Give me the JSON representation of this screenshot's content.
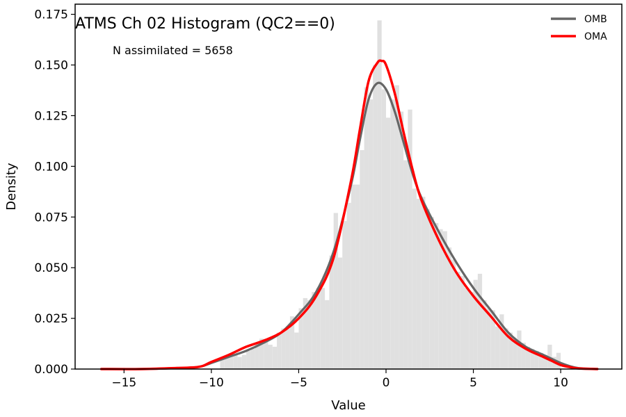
{
  "chart_data": {
    "type": "bar",
    "title": "ATMS Ch 02 Histogram (QC2==0)",
    "annotation": "N assimilated = 5658",
    "xlabel": "Value",
    "ylabel": "Density",
    "xlim": [
      -17.8,
      13.5
    ],
    "ylim": [
      0,
      0.18
    ],
    "xticks": [
      -15,
      -10,
      -5,
      0,
      5,
      10
    ],
    "xtick_labels": [
      "−15",
      "−10",
      "−5",
      "0",
      "5",
      "10"
    ],
    "yticks": [
      0.0,
      0.025,
      0.05,
      0.075,
      0.1,
      0.125,
      0.15,
      0.175
    ],
    "ytick_labels": [
      "0.000",
      "0.025",
      "0.050",
      "0.075",
      "0.100",
      "0.125",
      "0.150",
      "0.175"
    ],
    "grid": false,
    "legend_placement": "top-right",
    "histogram": {
      "color": "#e0e0e0",
      "bins": [
        {
          "x0": -9.5,
          "x1": -9.25,
          "y": 0.006
        },
        {
          "x0": -9.25,
          "x1": -9.0,
          "y": 0.006
        },
        {
          "x0": -9.0,
          "x1": -8.75,
          "y": 0.007
        },
        {
          "x0": -8.75,
          "x1": -8.5,
          "y": 0.007
        },
        {
          "x0": -8.5,
          "x1": -8.25,
          "y": 0.006
        },
        {
          "x0": -8.25,
          "x1": -8.0,
          "y": 0.007
        },
        {
          "x0": -8.0,
          "x1": -7.75,
          "y": 0.009
        },
        {
          "x0": -7.75,
          "x1": -7.5,
          "y": 0.01
        },
        {
          "x0": -7.5,
          "x1": -7.25,
          "y": 0.013
        },
        {
          "x0": -7.25,
          "x1": -7.0,
          "y": 0.015
        },
        {
          "x0": -7.0,
          "x1": -6.75,
          "y": 0.014
        },
        {
          "x0": -6.75,
          "x1": -6.5,
          "y": 0.012
        },
        {
          "x0": -6.5,
          "x1": -6.25,
          "y": 0.011
        },
        {
          "x0": -6.25,
          "x1": -6.0,
          "y": 0.018
        },
        {
          "x0": -6.0,
          "x1": -5.75,
          "y": 0.02
        },
        {
          "x0": -5.75,
          "x1": -5.5,
          "y": 0.02
        },
        {
          "x0": -5.5,
          "x1": -5.25,
          "y": 0.026
        },
        {
          "x0": -5.25,
          "x1": -5.0,
          "y": 0.018
        },
        {
          "x0": -5.0,
          "x1": -4.75,
          "y": 0.03
        },
        {
          "x0": -4.75,
          "x1": -4.5,
          "y": 0.035
        },
        {
          "x0": -4.5,
          "x1": -4.25,
          "y": 0.034
        },
        {
          "x0": -4.25,
          "x1": -4.0,
          "y": 0.038
        },
        {
          "x0": -4.0,
          "x1": -3.75,
          "y": 0.04
        },
        {
          "x0": -3.75,
          "x1": -3.5,
          "y": 0.04
        },
        {
          "x0": -3.5,
          "x1": -3.25,
          "y": 0.034
        },
        {
          "x0": -3.25,
          "x1": -3.0,
          "y": 0.056
        },
        {
          "x0": -3.0,
          "x1": -2.75,
          "y": 0.077
        },
        {
          "x0": -2.75,
          "x1": -2.5,
          "y": 0.055
        },
        {
          "x0": -2.5,
          "x1": -2.25,
          "y": 0.073
        },
        {
          "x0": -2.25,
          "x1": -2.0,
          "y": 0.082
        },
        {
          "x0": -2.0,
          "x1": -1.75,
          "y": 0.091
        },
        {
          "x0": -1.75,
          "x1": -1.5,
          "y": 0.091
        },
        {
          "x0": -1.5,
          "x1": -1.25,
          "y": 0.108
        },
        {
          "x0": -1.25,
          "x1": -1.0,
          "y": 0.139
        },
        {
          "x0": -1.0,
          "x1": -0.75,
          "y": 0.133
        },
        {
          "x0": -0.75,
          "x1": -0.5,
          "y": 0.15
        },
        {
          "x0": -0.5,
          "x1": -0.25,
          "y": 0.172
        },
        {
          "x0": -0.25,
          "x1": 0.0,
          "y": 0.138
        },
        {
          "x0": 0.0,
          "x1": 0.25,
          "y": 0.124
        },
        {
          "x0": 0.25,
          "x1": 0.5,
          "y": 0.133
        },
        {
          "x0": 0.5,
          "x1": 0.75,
          "y": 0.14
        },
        {
          "x0": 0.75,
          "x1": 1.0,
          "y": 0.127
        },
        {
          "x0": 1.0,
          "x1": 1.25,
          "y": 0.103
        },
        {
          "x0": 1.25,
          "x1": 1.5,
          "y": 0.128
        },
        {
          "x0": 1.5,
          "x1": 1.75,
          "y": 0.089
        },
        {
          "x0": 1.75,
          "x1": 2.0,
          "y": 0.084
        },
        {
          "x0": 2.0,
          "x1": 2.25,
          "y": 0.085
        },
        {
          "x0": 2.25,
          "x1": 2.5,
          "y": 0.079
        },
        {
          "x0": 2.5,
          "x1": 2.75,
          "y": 0.075
        },
        {
          "x0": 2.75,
          "x1": 3.0,
          "y": 0.072
        },
        {
          "x0": 3.0,
          "x1": 3.25,
          "y": 0.069
        },
        {
          "x0": 3.25,
          "x1": 3.5,
          "y": 0.068
        },
        {
          "x0": 3.5,
          "x1": 3.75,
          "y": 0.06
        },
        {
          "x0": 3.75,
          "x1": 4.0,
          "y": 0.054
        },
        {
          "x0": 4.0,
          "x1": 4.25,
          "y": 0.048
        },
        {
          "x0": 4.25,
          "x1": 4.5,
          "y": 0.046
        },
        {
          "x0": 4.5,
          "x1": 4.75,
          "y": 0.04
        },
        {
          "x0": 4.75,
          "x1": 5.0,
          "y": 0.038
        },
        {
          "x0": 5.0,
          "x1": 5.25,
          "y": 0.044
        },
        {
          "x0": 5.25,
          "x1": 5.5,
          "y": 0.047
        },
        {
          "x0": 5.5,
          "x1": 5.75,
          "y": 0.034
        },
        {
          "x0": 5.75,
          "x1": 6.0,
          "y": 0.03
        },
        {
          "x0": 6.0,
          "x1": 6.25,
          "y": 0.029
        },
        {
          "x0": 6.25,
          "x1": 6.5,
          "y": 0.021
        },
        {
          "x0": 6.5,
          "x1": 6.75,
          "y": 0.027
        },
        {
          "x0": 6.75,
          "x1": 7.0,
          "y": 0.02
        },
        {
          "x0": 7.0,
          "x1": 7.25,
          "y": 0.018
        },
        {
          "x0": 7.25,
          "x1": 7.5,
          "y": 0.014
        },
        {
          "x0": 7.5,
          "x1": 7.75,
          "y": 0.019
        },
        {
          "x0": 7.75,
          "x1": 8.0,
          "y": 0.013
        },
        {
          "x0": 8.0,
          "x1": 8.25,
          "y": 0.011
        },
        {
          "x0": 8.25,
          "x1": 8.5,
          "y": 0.01
        },
        {
          "x0": 8.5,
          "x1": 8.75,
          "y": 0.009
        },
        {
          "x0": 8.75,
          "x1": 9.0,
          "y": 0.008
        },
        {
          "x0": 9.0,
          "x1": 9.25,
          "y": 0.007
        },
        {
          "x0": 9.25,
          "x1": 9.5,
          "y": 0.012
        },
        {
          "x0": 9.5,
          "x1": 9.75,
          "y": 0.006
        },
        {
          "x0": 9.75,
          "x1": 10.0,
          "y": 0.008
        }
      ]
    },
    "series": [
      {
        "name": "OMB",
        "color": "#666666",
        "x": [
          -16.3,
          -14,
          -12,
          -11,
          -10.5,
          -10,
          -9,
          -8,
          -7,
          -6,
          -5,
          -4,
          -3,
          -2,
          -1.5,
          -1,
          -0.5,
          0,
          0.5,
          1,
          1.5,
          2,
          3,
          4,
          5,
          6,
          7,
          8,
          9,
          9.5,
          10,
          10.5,
          11,
          12.1
        ],
        "y": [
          0.0,
          0.0,
          0.0005,
          0.0008,
          0.0015,
          0.003,
          0.006,
          0.009,
          0.013,
          0.018,
          0.027,
          0.038,
          0.058,
          0.091,
          0.113,
          0.133,
          0.141,
          0.138,
          0.127,
          0.112,
          0.097,
          0.085,
          0.068,
          0.053,
          0.04,
          0.029,
          0.018,
          0.011,
          0.007,
          0.005,
          0.003,
          0.0015,
          0.0005,
          0.0
        ]
      },
      {
        "name": "OMA",
        "color": "#ff0000",
        "x": [
          -16.3,
          -14,
          -12,
          -11,
          -10.5,
          -10,
          -9,
          -8,
          -7,
          -6,
          -5,
          -4,
          -3,
          -2,
          -1.5,
          -1,
          -0.5,
          -0.25,
          0,
          0.5,
          1,
          1.5,
          2,
          3,
          4,
          5,
          6,
          7,
          8,
          9,
          9.5,
          10,
          10.5,
          11,
          12.1
        ],
        "y": [
          0.0,
          0.0,
          0.0005,
          0.0008,
          0.0015,
          0.0035,
          0.007,
          0.011,
          0.014,
          0.018,
          0.025,
          0.036,
          0.055,
          0.093,
          0.118,
          0.142,
          0.151,
          0.152,
          0.15,
          0.136,
          0.117,
          0.099,
          0.084,
          0.064,
          0.048,
          0.036,
          0.026,
          0.016,
          0.01,
          0.006,
          0.004,
          0.002,
          0.001,
          0.0003,
          0.0
        ]
      }
    ]
  }
}
